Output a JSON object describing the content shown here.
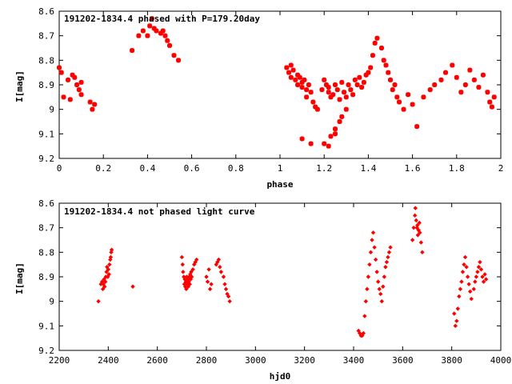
{
  "chart_data": [
    {
      "type": "scatter",
      "title": "191202-1834.4 phased with P=179.20day",
      "xlabel": "phase",
      "ylabel": "I[mag]",
      "xlim": [
        0,
        2
      ],
      "ylim": [
        9.2,
        8.6
      ],
      "y_inverted": true,
      "x_ticks": [
        "0",
        "0.2",
        "0.4",
        "0.6",
        "0.8",
        "1",
        "1.2",
        "1.4",
        "1.6",
        "1.8",
        "2"
      ],
      "y_ticks": [
        "8.6",
        "8.7",
        "8.8",
        "8.9",
        "9",
        "9.1",
        "9.2"
      ],
      "marker": "star",
      "color": "#ff0000",
      "series": [
        {
          "x": [
            0.0,
            0.01,
            0.02,
            0.04,
            0.05,
            0.06,
            0.07,
            0.08,
            0.09,
            0.1,
            0.1,
            0.14,
            0.15,
            0.16,
            0.33,
            0.36,
            0.38,
            0.4,
            0.41,
            0.42,
            0.43,
            0.44,
            0.46,
            0.47,
            0.48,
            0.49,
            0.5,
            0.52,
            0.54,
            1.03,
            1.04,
            1.05,
            1.05,
            1.06,
            1.07,
            1.08,
            1.08,
            1.09,
            1.1,
            1.1,
            1.11,
            1.12,
            1.12,
            1.13,
            1.14,
            1.15,
            1.16,
            1.17,
            1.19,
            1.2,
            1.21,
            1.22,
            1.22,
            1.23,
            1.24,
            1.25,
            1.26,
            1.27,
            1.28,
            1.29,
            1.3,
            1.31,
            1.32,
            1.33,
            1.34,
            1.35,
            1.36,
            1.37,
            1.38,
            1.39,
            1.4,
            1.41,
            1.42,
            1.43,
            1.44,
            1.46,
            1.47,
            1.48,
            1.49,
            1.5,
            1.51,
            1.52,
            1.53,
            1.54,
            1.56,
            1.58,
            1.6,
            1.62,
            1.65,
            1.68,
            1.7,
            1.73,
            1.75,
            1.78,
            1.8,
            1.82,
            1.84,
            1.86,
            1.88,
            1.9,
            1.92,
            1.94,
            1.95,
            1.96,
            1.97,
            1.1,
            1.14,
            1.2,
            1.23,
            1.25,
            1.28,
            1.3,
            1.27,
            1.25,
            1.22
          ],
          "y": [
            8.83,
            8.85,
            8.95,
            8.88,
            8.96,
            8.86,
            8.87,
            8.9,
            8.92,
            8.94,
            8.89,
            8.97,
            9.0,
            8.98,
            8.76,
            8.7,
            8.68,
            8.7,
            8.66,
            8.63,
            8.67,
            8.68,
            8.69,
            8.68,
            8.7,
            8.72,
            8.74,
            8.78,
            8.8,
            8.83,
            8.85,
            8.82,
            8.87,
            8.84,
            8.88,
            8.86,
            8.9,
            8.87,
            8.89,
            8.91,
            8.88,
            8.92,
            8.95,
            8.9,
            8.93,
            8.97,
            8.99,
            9.0,
            8.92,
            8.88,
            8.9,
            8.93,
            8.91,
            8.95,
            8.94,
            8.9,
            8.92,
            8.96,
            8.89,
            8.93,
            8.95,
            8.9,
            8.92,
            8.94,
            8.88,
            8.9,
            8.87,
            8.91,
            8.89,
            8.86,
            8.85,
            8.83,
            8.78,
            8.73,
            8.71,
            8.75,
            8.8,
            8.82,
            8.85,
            8.88,
            8.92,
            8.9,
            8.95,
            8.97,
            9.0,
            8.94,
            8.98,
            9.07,
            8.95,
            8.92,
            8.9,
            8.88,
            8.85,
            8.82,
            8.87,
            8.93,
            8.9,
            8.84,
            8.88,
            8.91,
            8.86,
            8.93,
            8.97,
            8.99,
            8.95,
            9.12,
            9.14,
            9.14,
            9.11,
            9.08,
            9.03,
            9.0,
            9.05,
            9.1,
            9.15
          ]
        }
      ]
    },
    {
      "type": "scatter",
      "title": "191202-1834.4 not phased light curve",
      "xlabel": "hjd0",
      "ylabel": "I[mag]",
      "xlim": [
        2200,
        4000
      ],
      "ylim": [
        9.2,
        8.6
      ],
      "y_inverted": true,
      "x_ticks": [
        "2200",
        "2400",
        "2600",
        "2800",
        "3000",
        "3200",
        "3400",
        "3600",
        "3800",
        "4000"
      ],
      "y_ticks": [
        "8.6",
        "8.7",
        "8.8",
        "8.9",
        "9",
        "9.1",
        "9.2"
      ],
      "marker": "diamond",
      "color": "#ff0000",
      "series": [
        {
          "x": [
            2360,
            2370,
            2375,
            2378,
            2380,
            2383,
            2385,
            2388,
            2390,
            2393,
            2395,
            2398,
            2400,
            2403,
            2405,
            2408,
            2410,
            2412,
            2414,
            2500,
            2700,
            2703,
            2705,
            2708,
            2710,
            2712,
            2714,
            2716,
            2718,
            2720,
            2722,
            2724,
            2726,
            2728,
            2730,
            2732,
            2734,
            2736,
            2738,
            2740,
            2745,
            2750,
            2755,
            2760,
            2800,
            2805,
            2810,
            2815,
            2820,
            2840,
            2845,
            2850,
            2855,
            2860,
            2870,
            2875,
            2880,
            2885,
            2890,
            2895,
            3420,
            3425,
            3430,
            3435,
            3440,
            3445,
            3450,
            3455,
            3460,
            3465,
            3470,
            3475,
            3480,
            3485,
            3490,
            3495,
            3500,
            3505,
            3510,
            3515,
            3520,
            3525,
            3530,
            3535,
            3540,
            3545,
            3550,
            3640,
            3645,
            3650,
            3652,
            3655,
            3658,
            3660,
            3662,
            3665,
            3668,
            3670,
            3675,
            3680,
            3810,
            3815,
            3820,
            3825,
            3830,
            3835,
            3840,
            3845,
            3850,
            3855,
            3860,
            3865,
            3870,
            3875,
            3880,
            3890,
            3895,
            3900,
            3905,
            3910,
            3915,
            3920,
            3925,
            3930,
            3935,
            3940
          ],
          "y": [
            9.0,
            8.93,
            8.92,
            8.95,
            8.93,
            8.91,
            8.94,
            8.92,
            8.9,
            8.88,
            8.86,
            8.9,
            8.87,
            8.89,
            8.85,
            8.83,
            8.82,
            8.8,
            8.79,
            8.94,
            8.82,
            8.85,
            8.88,
            8.9,
            8.93,
            8.91,
            8.94,
            8.92,
            8.95,
            8.9,
            8.93,
            8.91,
            8.94,
            8.92,
            8.9,
            8.93,
            8.89,
            8.91,
            8.88,
            8.9,
            8.87,
            8.85,
            8.84,
            8.83,
            8.9,
            8.92,
            8.87,
            8.95,
            8.93,
            8.85,
            8.84,
            8.83,
            8.86,
            8.88,
            8.9,
            8.93,
            8.95,
            8.97,
            8.98,
            9.0,
            9.12,
            9.13,
            9.14,
            9.14,
            9.13,
            9.06,
            9.0,
            8.95,
            8.9,
            8.85,
            8.8,
            8.75,
            8.72,
            8.78,
            8.83,
            8.88,
            8.92,
            8.95,
            8.97,
            9.0,
            8.94,
            8.9,
            8.86,
            8.84,
            8.82,
            8.8,
            8.78,
            8.75,
            8.7,
            8.65,
            8.62,
            8.67,
            8.7,
            8.69,
            8.73,
            8.71,
            8.68,
            8.72,
            8.76,
            8.8,
            9.05,
            9.1,
            9.08,
            9.03,
            8.98,
            8.95,
            8.92,
            8.88,
            8.85,
            8.82,
            8.86,
            8.9,
            8.93,
            8.96,
            8.99,
            8.95,
            8.92,
            8.9,
            8.88,
            8.86,
            8.84,
            8.87,
            8.9,
            8.92,
            8.89,
            8.91
          ]
        }
      ]
    }
  ]
}
